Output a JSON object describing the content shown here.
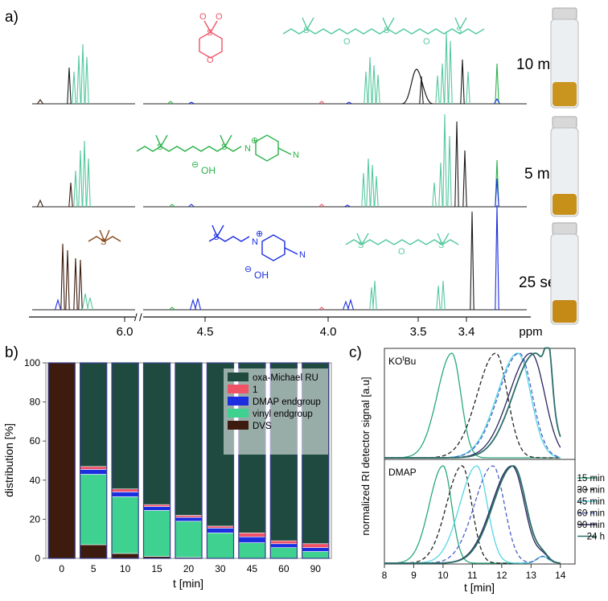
{
  "panel_labels": {
    "a": "a)",
    "b": "b)",
    "c": "c)"
  },
  "colors": {
    "dvs": "#3d1b0e",
    "vinyl": "#3fd190",
    "dmap": "#1b2ee0",
    "one": "#f05266",
    "oxa": "#1e4a3f",
    "black": "#1a1a1a",
    "green": "#2bb24a",
    "nmr_teal": "#57c99f",
    "bracket_blue": "#2b3c92",
    "brown": "#8a4a1c"
  },
  "chart_data": [
    {
      "id": "nmr",
      "type": "line",
      "xlabel": "ppm",
      "x_ticks": [
        "6.0",
        "4.5",
        "4.0",
        "3.5",
        "3.4",
        "ppm"
      ],
      "axis_breaks": 1,
      "spectra": [
        {
          "time_label": "10 min"
        },
        {
          "time_label": "5 min"
        },
        {
          "time_label": "25 sec"
        }
      ],
      "structure_labels": {
        "charge": "⊕",
        "neg_charge": "⊖",
        "oh": "OH",
        "o": "O",
        "s": "S",
        "n": "N"
      }
    },
    {
      "id": "distribution",
      "type": "bar",
      "stacked": true,
      "xlabel": "t [min]",
      "ylabel": "distribution [%]",
      "ylim": [
        0,
        100
      ],
      "y_ticks": [
        "0",
        "20",
        "40",
        "60",
        "80",
        "100"
      ],
      "categories": [
        "0",
        "5",
        "10",
        "15",
        "20",
        "30",
        "45",
        "60",
        "90"
      ],
      "series": [
        {
          "name": "DVS",
          "color": "#3d1b0e",
          "values": [
            100,
            7,
            2.5,
            1,
            0.5,
            0,
            0,
            0,
            0
          ]
        },
        {
          "name": "vinyl endgroup",
          "color": "#3fd190",
          "values": [
            0,
            36,
            29,
            23.5,
            18.5,
            13,
            8,
            5.5,
            3.5
          ]
        },
        {
          "name": "DMAP endgroup",
          "color": "#1b2ee0",
          "values": [
            0,
            2.5,
            2.5,
            2,
            2,
            2.5,
            3,
            2,
            2
          ]
        },
        {
          "name": "1",
          "color": "#f05266",
          "values": [
            0,
            1.5,
            1.5,
            1,
            1,
            1,
            2,
            1.5,
            2
          ]
        },
        {
          "name": "oxa-Michael RU",
          "color": "#1e4a3f",
          "values": [
            0,
            53,
            64.5,
            72.5,
            78,
            83.5,
            87,
            91,
            92.5
          ]
        }
      ],
      "legend_order": [
        "oxa-Michael RU",
        "1",
        "DMAP endgroup",
        "vinyl endgroup",
        "DVS"
      ],
      "legend_position": "top-right"
    },
    {
      "id": "sec",
      "type": "line",
      "xlabel": "t [min]",
      "ylabel": "normalized RI detector signal [a.u]",
      "xlim": [
        8,
        14.5
      ],
      "x_ticks": [
        "8",
        "9",
        "10",
        "11",
        "12",
        "13",
        "14"
      ],
      "panels": [
        {
          "label": "KO",
          "label_sup": "t",
          "label_tail": "Bu",
          "peaks": [
            10.3,
            11.8,
            12.55,
            12.6,
            13.0,
            13.15
          ]
        },
        {
          "label": "DMAP",
          "label_sup": "",
          "label_tail": "",
          "peaks": [
            10.0,
            10.65,
            11.15,
            11.7,
            12.35,
            12.4
          ]
        }
      ],
      "series": [
        {
          "name": "15 min",
          "color": "#2aa87e",
          "style": "solid"
        },
        {
          "name": "30 min",
          "color": "#222222",
          "style": "dashed"
        },
        {
          "name": "45 min",
          "color": "#55d6e6",
          "style": "solid"
        },
        {
          "name": "60 min",
          "color": "#4a5fc8",
          "style": "dashed"
        },
        {
          "name": "90 min",
          "color": "#2b2560",
          "style": "solid"
        },
        {
          "name": "24 h",
          "color": "#2b6e68",
          "style": "solid"
        }
      ]
    }
  ]
}
